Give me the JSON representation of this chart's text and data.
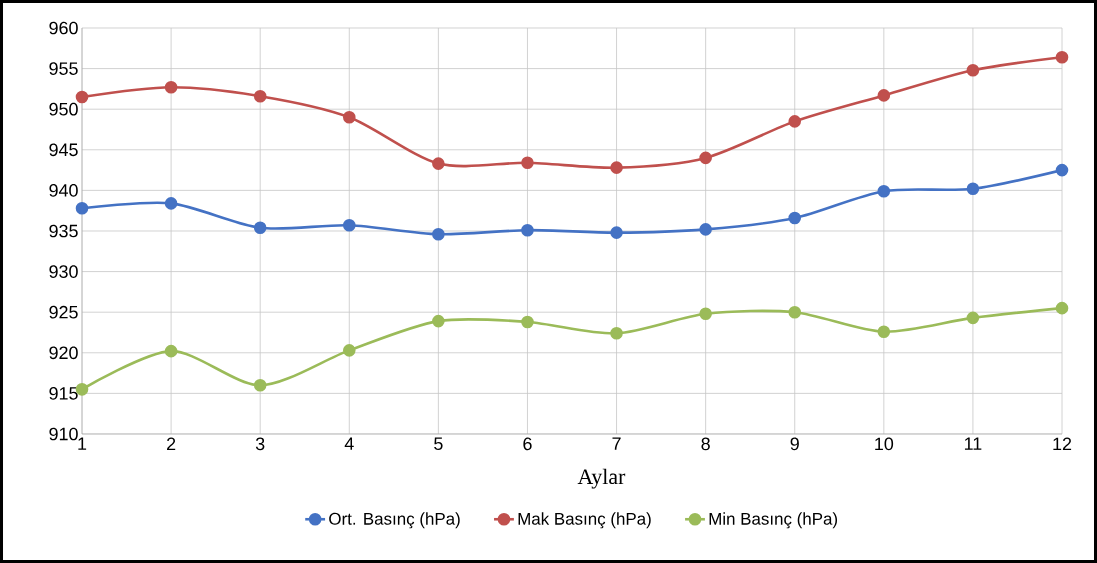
{
  "chart_data": {
    "type": "line",
    "xlabel": "Aylar",
    "x": [
      1,
      2,
      3,
      4,
      5,
      6,
      7,
      8,
      9,
      10,
      11,
      12
    ],
    "xlim": [
      1,
      12
    ],
    "ylim": [
      910,
      960
    ],
    "xticks": [
      1,
      2,
      3,
      4,
      5,
      6,
      7,
      8,
      9,
      10,
      11,
      12
    ],
    "yticks": [
      910,
      915,
      920,
      925,
      930,
      935,
      940,
      945,
      950,
      955,
      960
    ],
    "grid": true,
    "legend": "bottom",
    "marker": "circle",
    "line_style": "solid",
    "series": [
      {
        "name": "Ort. Basınç (hPa)",
        "color": "#4472c4",
        "values": [
          937.8,
          938.4,
          935.4,
          935.7,
          934.6,
          935.1,
          934.8,
          935.2,
          936.6,
          939.9,
          940.2,
          942.5
        ]
      },
      {
        "name": "Mak Basınç (hPa)",
        "color": "#c0504d",
        "values": [
          951.5,
          952.7,
          951.6,
          949.0,
          943.3,
          943.4,
          942.8,
          944.0,
          948.5,
          951.7,
          954.8,
          956.4
        ]
      },
      {
        "name": "Min Basınç (hPa)",
        "color": "#9bbb59",
        "values": [
          915.5,
          920.2,
          916.0,
          920.3,
          923.9,
          923.8,
          922.4,
          924.8,
          925.0,
          922.6,
          924.3,
          925.5
        ]
      }
    ]
  }
}
